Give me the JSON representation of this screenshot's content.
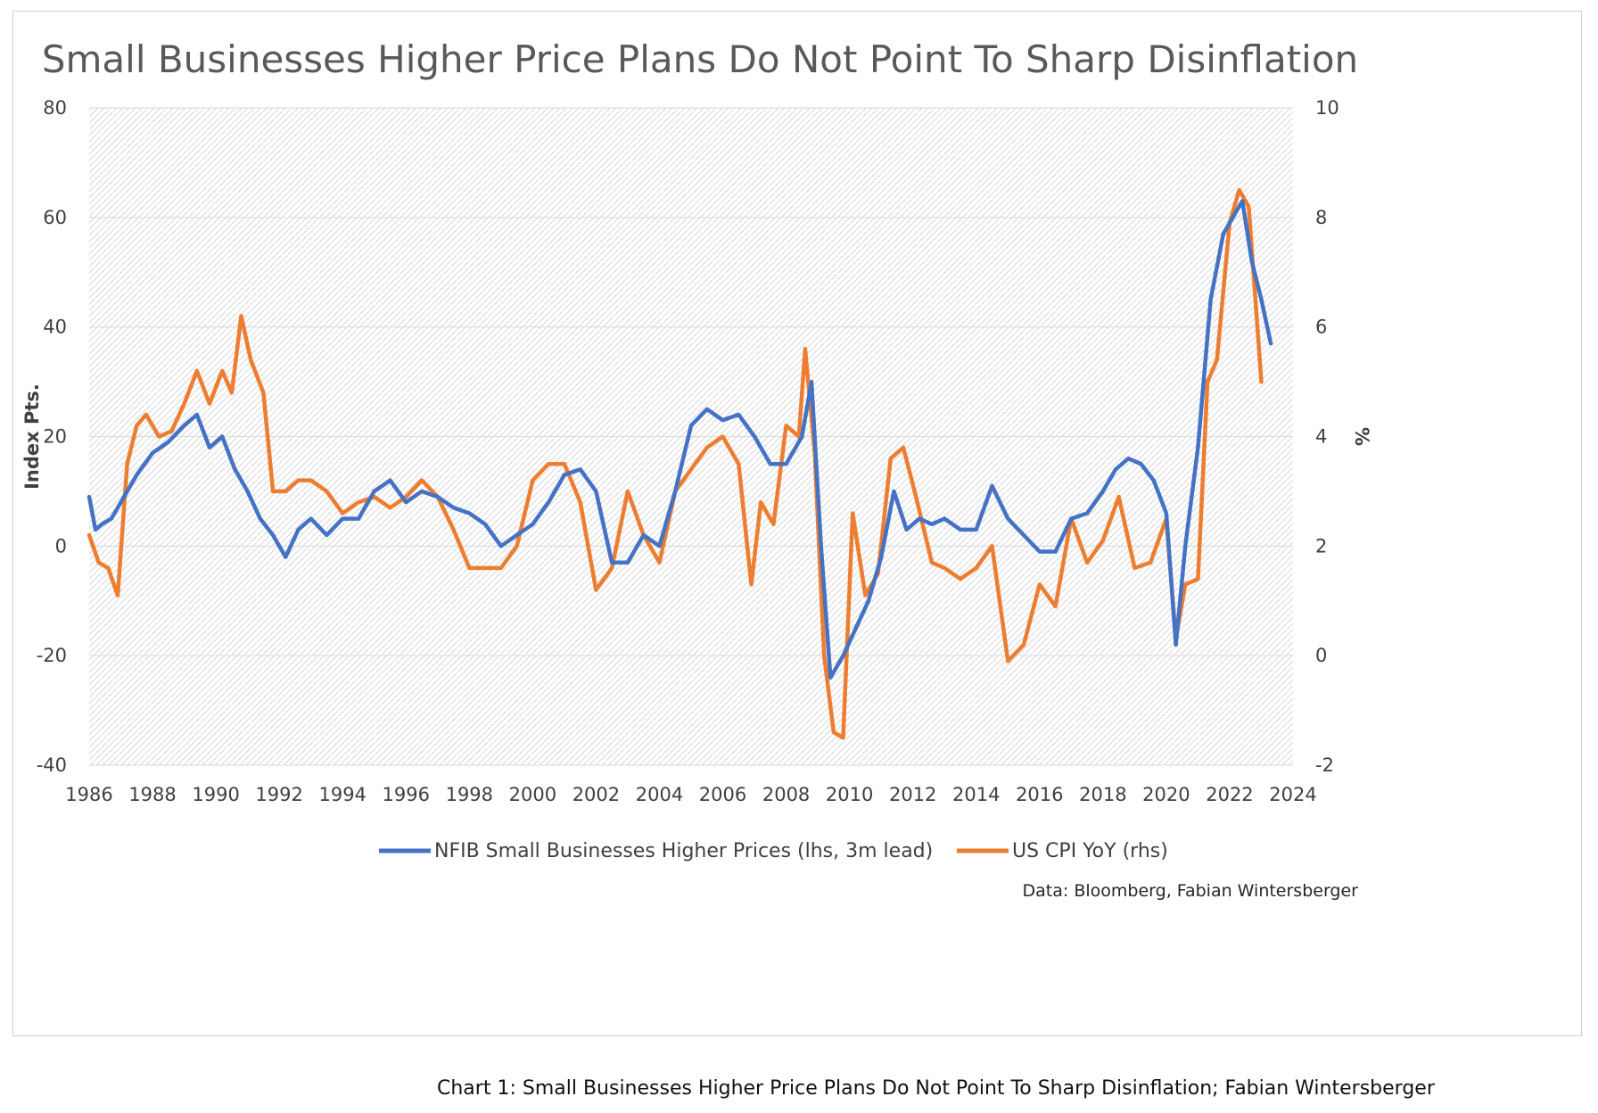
{
  "caption": "Chart 1: Small Businesses Higher Price Plans Do Not Point To Sharp Disinflation; Fabian Wintersberger",
  "source": "Data: Bloomberg, Fabian Wintersberger",
  "colors": {
    "nfib": "#4472C4",
    "cpi": "#ED7D31",
    "grid": "#d9d9d9",
    "hatch": "#d6d6d6"
  },
  "chart_data": {
    "type": "line",
    "title": "Small Businesses Higher Price Plans Do Not Point To Sharp Disinflation",
    "ylabel": "Index Pts.",
    "y2label": "%",
    "xlim": [
      1986,
      2024
    ],
    "ylim": [
      -40,
      80
    ],
    "y2lim": [
      -2,
      10
    ],
    "x_ticks": [
      "1986",
      "1988",
      "1990",
      "1992",
      "1994",
      "1996",
      "1998",
      "2000",
      "2002",
      "2004",
      "2006",
      "2008",
      "2010",
      "2012",
      "2014",
      "2016",
      "2018",
      "2020",
      "2022",
      "2024"
    ],
    "y_ticks": [
      "80",
      "60",
      "40",
      "20",
      "0",
      "-20",
      "-40"
    ],
    "y2_ticks": [
      "10",
      "8",
      "6",
      "4",
      "2",
      "0",
      "-2"
    ],
    "grid": true,
    "legend_position": "bottom",
    "series": [
      {
        "name": "NFIB Small Businesses Higher Prices (lhs, 3m lead)",
        "axis": "left",
        "x": [
          1986.0,
          1986.2,
          1986.4,
          1986.7,
          1987.0,
          1987.5,
          1988.0,
          1988.5,
          1989.0,
          1989.4,
          1989.8,
          1990.2,
          1990.6,
          1991.0,
          1991.4,
          1991.8,
          1992.2,
          1992.6,
          1993.0,
          1993.5,
          1994.0,
          1994.5,
          1995.0,
          1995.5,
          1996.0,
          1996.5,
          1997.0,
          1997.5,
          1998.0,
          1998.5,
          1999.0,
          1999.5,
          2000.0,
          2000.5,
          2001.0,
          2001.5,
          2002.0,
          2002.5,
          2003.0,
          2003.5,
          2004.0,
          2004.5,
          2005.0,
          2005.5,
          2006.0,
          2006.5,
          2007.0,
          2007.5,
          2008.0,
          2008.5,
          2008.8,
          2009.1,
          2009.4,
          2009.8,
          2010.2,
          2010.6,
          2011.0,
          2011.4,
          2011.8,
          2012.2,
          2012.6,
          2013.0,
          2013.5,
          2014.0,
          2014.5,
          2015.0,
          2015.5,
          2016.0,
          2016.5,
          2017.0,
          2017.5,
          2018.0,
          2018.4,
          2018.8,
          2019.2,
          2019.6,
          2020.0,
          2020.3,
          2020.6,
          2021.0,
          2021.4,
          2021.8,
          2022.1,
          2022.4,
          2022.7,
          2023.0,
          2023.3
        ],
        "y": [
          9,
          3,
          4,
          5,
          8,
          13,
          17,
          19,
          22,
          24,
          18,
          20,
          14,
          10,
          5,
          2,
          -2,
          3,
          5,
          2,
          5,
          5,
          10,
          12,
          8,
          10,
          9,
          7,
          6,
          4,
          0,
          2,
          4,
          8,
          13,
          14,
          10,
          -3,
          -3,
          2,
          0,
          10,
          22,
          25,
          23,
          24,
          20,
          15,
          15,
          20,
          30,
          0,
          -24,
          -20,
          -15,
          -10,
          -2,
          10,
          3,
          5,
          4,
          5,
          3,
          3,
          11,
          5,
          2,
          -1,
          -1,
          5,
          6,
          10,
          14,
          16,
          15,
          12,
          6,
          -18,
          0,
          18,
          45,
          57,
          60,
          63,
          52,
          45,
          37
        ]
      },
      {
        "name": "US CPI YoY (rhs)",
        "axis": "right",
        "x": [
          1986.0,
          1986.3,
          1986.6,
          1986.9,
          1987.2,
          1987.5,
          1987.8,
          1988.2,
          1988.6,
          1989.0,
          1989.4,
          1989.8,
          1990.2,
          1990.5,
          1990.8,
          1991.1,
          1991.5,
          1991.8,
          1992.2,
          1992.6,
          1993.0,
          1993.5,
          1994.0,
          1994.5,
          1995.0,
          1995.5,
          1996.0,
          1996.5,
          1997.0,
          1997.5,
          1998.0,
          1998.5,
          1999.0,
          1999.5,
          2000.0,
          2000.5,
          2001.0,
          2001.5,
          2002.0,
          2002.5,
          2003.0,
          2003.5,
          2004.0,
          2004.5,
          2005.0,
          2005.5,
          2006.0,
          2006.5,
          2006.9,
          2007.2,
          2007.6,
          2008.0,
          2008.4,
          2008.6,
          2008.9,
          2009.2,
          2009.5,
          2009.8,
          2010.1,
          2010.5,
          2010.9,
          2011.3,
          2011.7,
          2012.1,
          2012.6,
          2013.0,
          2013.5,
          2014.0,
          2014.5,
          2015.0,
          2015.5,
          2016.0,
          2016.5,
          2017.0,
          2017.5,
          2018.0,
          2018.5,
          2019.0,
          2019.5,
          2020.0,
          2020.3,
          2020.6,
          2021.0,
          2021.3,
          2021.6,
          2022.0,
          2022.3,
          2022.6,
          2023.0
        ],
        "y": [
          2.2,
          1.7,
          1.6,
          1.1,
          3.5,
          4.2,
          4.4,
          4.0,
          4.1,
          4.6,
          5.2,
          4.6,
          5.2,
          4.8,
          6.2,
          5.4,
          4.8,
          3.0,
          3.0,
          3.2,
          3.2,
          3.0,
          2.6,
          2.8,
          2.9,
          2.7,
          2.9,
          3.2,
          2.9,
          2.3,
          1.6,
          1.6,
          1.6,
          2.0,
          3.2,
          3.5,
          3.5,
          2.8,
          1.2,
          1.6,
          3.0,
          2.2,
          1.7,
          3.0,
          3.4,
          3.8,
          4.0,
          3.5,
          1.3,
          2.8,
          2.4,
          4.2,
          4.0,
          5.6,
          3.7,
          0.0,
          -1.4,
          -1.5,
          2.6,
          1.1,
          1.5,
          3.6,
          3.8,
          2.9,
          1.7,
          1.6,
          1.4,
          1.6,
          2.0,
          -0.1,
          0.2,
          1.3,
          0.9,
          2.5,
          1.7,
          2.1,
          2.9,
          1.6,
          1.7,
          2.5,
          0.3,
          1.3,
          1.4,
          5.0,
          5.4,
          7.9,
          8.5,
          8.2,
          5.0
        ]
      }
    ]
  }
}
